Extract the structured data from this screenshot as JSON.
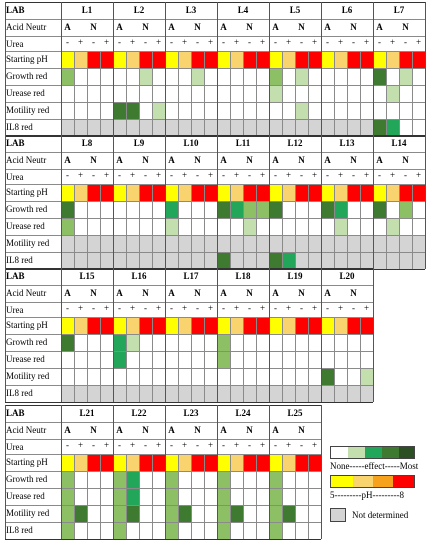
{
  "colors": {
    "white": "#ffffff",
    "grey": "#d4d4d4",
    "light_green": "#c4dfae",
    "mid_green": "#8dbf64",
    "bright_green": "#21a65a",
    "dark_green": "#3f7a31",
    "very_dark_green": "#2d4f24",
    "ph_yellow": "#ffff00",
    "ph_light_orange": "#f9d36e",
    "ph_orange": "#f7a21c",
    "ph_red": "#ff0000"
  },
  "row_labels": {
    "lab": "LAB",
    "acid_neutr": "Acid Neutr",
    "urea": "Urea",
    "starting_ph": "Starting pH",
    "growth_red": "Growth red",
    "urease_red": "Urease red",
    "motility_red": "Motility red",
    "il8_red": "IL8 red"
  },
  "acid_label": "A",
  "neutr_label": "N",
  "minus": "-",
  "plus": "+",
  "blocks": [
    {
      "strains": [
        "L1",
        "L2",
        "L3",
        "L4",
        "L5",
        "L6",
        "L7"
      ],
      "ph": [
        "Y",
        "O",
        "R",
        "R",
        "Y",
        "O",
        "R",
        "R",
        "Y",
        "O",
        "R",
        "R",
        "Y",
        "O",
        "R",
        "R",
        "Y",
        "O",
        "R",
        "R",
        "Y",
        "O",
        "R",
        "R",
        "Y",
        "O",
        "R",
        "R"
      ],
      "growth": [
        "G",
        "W",
        "W",
        "W",
        "W",
        "W",
        "L",
        "W",
        "W",
        "W",
        "L",
        "W",
        "W",
        "W",
        "W",
        "W",
        "G",
        "W",
        "L",
        "W",
        "W",
        "W",
        "W",
        "W",
        "D",
        "W",
        "L",
        "W"
      ],
      "urease": [
        "W",
        "W",
        "W",
        "W",
        "W",
        "W",
        "W",
        "W",
        "W",
        "W",
        "W",
        "W",
        "W",
        "W",
        "W",
        "W",
        "L",
        "W",
        "W",
        "W",
        "W",
        "W",
        "W",
        "W",
        "W",
        "L",
        "W",
        "W"
      ],
      "motility": [
        "W",
        "W",
        "W",
        "W",
        "D",
        "D",
        "W",
        "L",
        "W",
        "W",
        "W",
        "W",
        "W",
        "W",
        "W",
        "W",
        "W",
        "W",
        "L",
        "W",
        "W",
        "W",
        "W",
        "W",
        "W",
        "W",
        "W",
        "W"
      ],
      "il8": [
        "E",
        "E",
        "E",
        "E",
        "E",
        "E",
        "E",
        "E",
        "E",
        "E",
        "E",
        "E",
        "E",
        "E",
        "E",
        "E",
        "E",
        "E",
        "E",
        "E",
        "E",
        "E",
        "E",
        "E",
        "D",
        "B",
        "W",
        "W"
      ]
    },
    {
      "strains": [
        "L8",
        "L9",
        "L10",
        "L11",
        "L12",
        "L13",
        "L14"
      ],
      "ph": [
        "Y",
        "O",
        "R",
        "R",
        "Y",
        "O",
        "R",
        "R",
        "Y",
        "O",
        "R",
        "R",
        "Y",
        "O",
        "R",
        "R",
        "Y",
        "O",
        "R",
        "R",
        "Y",
        "O",
        "R",
        "R",
        "Y",
        "O",
        "R",
        "R"
      ],
      "growth": [
        "D",
        "W",
        "W",
        "W",
        "W",
        "W",
        "W",
        "W",
        "B",
        "W",
        "W",
        "W",
        "D",
        "B",
        "G",
        "G",
        "D",
        "W",
        "W",
        "W",
        "D",
        "B",
        "W",
        "W",
        "D",
        "W",
        "G",
        "W"
      ],
      "urease": [
        "G",
        "W",
        "W",
        "W",
        "W",
        "W",
        "W",
        "W",
        "L",
        "W",
        "W",
        "W",
        "W",
        "W",
        "L",
        "W",
        "W",
        "W",
        "W",
        "W",
        "W",
        "L",
        "W",
        "W",
        "W",
        "L",
        "W",
        "W"
      ],
      "motility": [
        "E",
        "E",
        "E",
        "E",
        "E",
        "E",
        "E",
        "E",
        "E",
        "E",
        "E",
        "E",
        "E",
        "E",
        "E",
        "E",
        "E",
        "E",
        "E",
        "E",
        "E",
        "E",
        "E",
        "E",
        "E",
        "E",
        "E",
        "E"
      ],
      "il8": [
        "E",
        "E",
        "E",
        "E",
        "E",
        "E",
        "E",
        "E",
        "E",
        "E",
        "E",
        "E",
        "D",
        "E",
        "E",
        "E",
        "D",
        "B",
        "E",
        "E",
        "E",
        "E",
        "E",
        "E",
        "E",
        "E",
        "E",
        "E"
      ]
    },
    {
      "strains": [
        "L15",
        "L16",
        "L17",
        "L18",
        "L19",
        "L20"
      ],
      "ph": [
        "Y",
        "O",
        "R",
        "R",
        "Y",
        "O",
        "R",
        "R",
        "Y",
        "O",
        "R",
        "R",
        "Y",
        "O",
        "R",
        "R",
        "Y",
        "O",
        "R",
        "R",
        "Y",
        "O",
        "R",
        "R"
      ],
      "growth": [
        "D",
        "W",
        "W",
        "W",
        "B",
        "L",
        "W",
        "W",
        "W",
        "W",
        "W",
        "W",
        "G",
        "W",
        "W",
        "W",
        "W",
        "W",
        "W",
        "W",
        "W",
        "W",
        "W",
        "W"
      ],
      "urease": [
        "W",
        "W",
        "W",
        "W",
        "B",
        "W",
        "W",
        "W",
        "W",
        "W",
        "W",
        "W",
        "G",
        "W",
        "W",
        "W",
        "W",
        "W",
        "W",
        "W",
        "W",
        "W",
        "W",
        "W"
      ],
      "motility": [
        "W",
        "W",
        "W",
        "W",
        "W",
        "W",
        "W",
        "W",
        "W",
        "W",
        "W",
        "W",
        "W",
        "W",
        "W",
        "W",
        "W",
        "W",
        "W",
        "W",
        "D",
        "W",
        "W",
        "L"
      ],
      "il8": [
        "E",
        "E",
        "E",
        "E",
        "E",
        "E",
        "E",
        "E",
        "E",
        "E",
        "E",
        "E",
        "E",
        "E",
        "E",
        "E",
        "E",
        "E",
        "E",
        "E",
        "E",
        "E",
        "E",
        "E"
      ]
    },
    {
      "strains": [
        "L21",
        "L22",
        "L23",
        "L24",
        "L25"
      ],
      "ph": [
        "Y",
        "O",
        "R",
        "R",
        "Y",
        "O",
        "R",
        "R",
        "Y",
        "O",
        "R",
        "R",
        "Y",
        "O",
        "R",
        "R",
        "Y",
        "O",
        "R",
        "R"
      ],
      "growth": [
        "G",
        "W",
        "W",
        "W",
        "G",
        "B",
        "W",
        "W",
        "G",
        "W",
        "W",
        "W",
        "G",
        "W",
        "W",
        "W",
        "G",
        "W",
        "W",
        "W"
      ],
      "urease": [
        "G",
        "W",
        "W",
        "W",
        "G",
        "B",
        "W",
        "W",
        "G",
        "W",
        "W",
        "W",
        "G",
        "W",
        "W",
        "W",
        "G",
        "W",
        "W",
        "W"
      ],
      "motility": [
        "G",
        "D",
        "W",
        "W",
        "G",
        "D",
        "W",
        "W",
        "G",
        "D",
        "W",
        "W",
        "G",
        "D",
        "W",
        "W",
        "G",
        "D",
        "W",
        "W"
      ],
      "il8": [
        "G",
        "W",
        "W",
        "W",
        "G",
        "W",
        "W",
        "W",
        "G",
        "W",
        "W",
        "W",
        "G",
        "W",
        "W",
        "W",
        "G",
        "W",
        "W",
        "W"
      ]
    }
  ],
  "legend": {
    "effect_text": "None-----effect-----Most",
    "ph_text": "5---------pH---------8",
    "not_determined": "Not determined"
  }
}
